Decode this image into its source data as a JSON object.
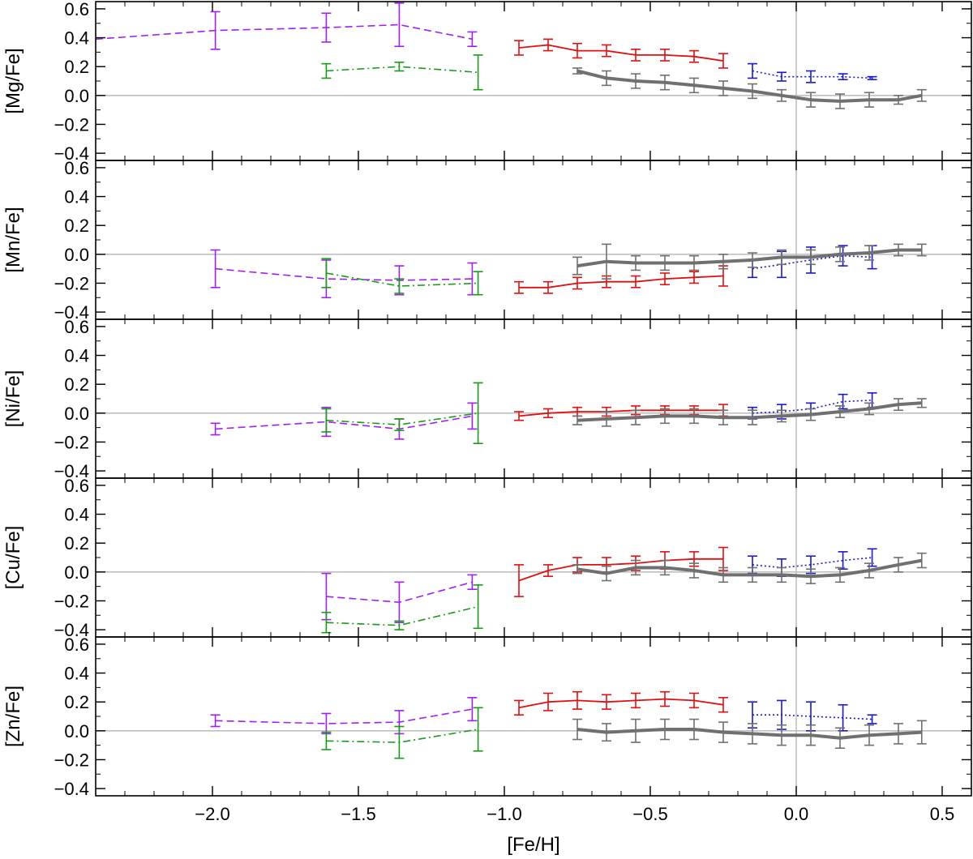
{
  "chart_data": {
    "type": "line",
    "xlabel": "[Fe/H]",
    "xlim": [
      -2.4,
      0.6
    ],
    "x_ticks": [
      -2.0,
      -1.5,
      -1.0,
      -0.5,
      0.0,
      0.5
    ],
    "x_tick_labels": [
      "−2.0",
      "−1.5",
      "−1.0",
      "−0.5",
      "0.0",
      "0.5"
    ],
    "ylim": [
      -0.45,
      0.65
    ],
    "y_ticks": [
      -0.4,
      -0.2,
      0.0,
      0.2,
      0.4,
      0.6
    ],
    "y_tick_labels": [
      "−0.4",
      "−0.2",
      "0.0",
      "0.2",
      "0.4",
      "0.6"
    ],
    "reference_lines": {
      "y": 0.0,
      "x": 0.0,
      "color": "#c0c0c0"
    },
    "series_styles": {
      "purple": {
        "color": "#a020f0",
        "dash": "dashed",
        "width": 1.6
      },
      "green": {
        "color": "#1a9a1a",
        "dash": "dashdot",
        "width": 1.6
      },
      "red": {
        "color": "#e01010",
        "dash": "solid",
        "width": 1.8
      },
      "blue": {
        "color": "#1a1acc",
        "dash": "dotted",
        "width": 1.6
      },
      "gray": {
        "color": "#707070",
        "dash": "solid",
        "width": 4
      }
    },
    "panels": [
      {
        "ylabel": "[Mg/Fe]",
        "series": [
          {
            "style": "purple",
            "x": [
              -2.4,
              -1.99,
              -1.61,
              -1.36,
              -1.11
            ],
            "y": [
              0.39,
              0.45,
              0.47,
              0.49,
              0.39
            ],
            "err": [
              0.0,
              0.13,
              0.1,
              0.15,
              0.05
            ]
          },
          {
            "style": "green",
            "x": [
              -1.61,
              -1.36,
              -1.09
            ],
            "y": [
              0.17,
              0.2,
              0.16
            ],
            "err": [
              0.05,
              0.03,
              0.12
            ]
          },
          {
            "style": "red",
            "x": [
              -0.95,
              -0.85,
              -0.75,
              -0.65,
              -0.55,
              -0.45,
              -0.35,
              -0.25
            ],
            "y": [
              0.33,
              0.35,
              0.31,
              0.31,
              0.28,
              0.28,
              0.27,
              0.24
            ],
            "err": [
              0.05,
              0.04,
              0.05,
              0.04,
              0.04,
              0.04,
              0.04,
              0.05
            ]
          },
          {
            "style": "blue",
            "x": [
              -0.15,
              -0.05,
              0.05,
              0.16,
              0.26
            ],
            "y": [
              0.17,
              0.13,
              0.13,
              0.13,
              0.12
            ],
            "err": [
              0.05,
              0.03,
              0.04,
              0.02,
              0.01
            ]
          },
          {
            "style": "gray",
            "x": [
              -0.75,
              -0.65,
              -0.55,
              -0.45,
              -0.35,
              -0.25,
              -0.15,
              -0.05,
              0.05,
              0.15,
              0.25,
              0.35,
              0.43
            ],
            "y": [
              0.17,
              0.12,
              0.1,
              0.09,
              0.07,
              0.05,
              0.03,
              0.0,
              -0.03,
              -0.04,
              -0.03,
              -0.03,
              0.0
            ],
            "err": [
              0.02,
              0.05,
              0.05,
              0.05,
              0.05,
              0.05,
              0.05,
              0.04,
              0.05,
              0.05,
              0.05,
              0.03,
              0.04
            ]
          }
        ]
      },
      {
        "ylabel": "[Mn/Fe]",
        "series": [
          {
            "style": "purple",
            "x": [
              -1.99,
              -1.61,
              -1.36,
              -1.11
            ],
            "y": [
              -0.1,
              -0.17,
              -0.18,
              -0.17
            ],
            "err": [
              0.13,
              0.13,
              0.1,
              0.11
            ]
          },
          {
            "style": "green",
            "x": [
              -1.61,
              -1.36,
              -1.09
            ],
            "y": [
              -0.13,
              -0.22,
              -0.2
            ],
            "err": [
              0.1,
              0.05,
              0.08
            ]
          },
          {
            "style": "red",
            "x": [
              -0.95,
              -0.85,
              -0.75,
              -0.65,
              -0.55,
              -0.45,
              -0.35,
              -0.25
            ],
            "y": [
              -0.23,
              -0.23,
              -0.2,
              -0.19,
              -0.19,
              -0.17,
              -0.16,
              -0.15
            ],
            "err": [
              0.04,
              0.04,
              0.04,
              0.04,
              0.04,
              0.04,
              0.04,
              0.07
            ]
          },
          {
            "style": "blue",
            "x": [
              -0.15,
              -0.05,
              0.05,
              0.16,
              0.26
            ],
            "y": [
              -0.1,
              -0.07,
              -0.04,
              -0.01,
              -0.02
            ],
            "err": [
              0.06,
              0.09,
              0.09,
              0.07,
              0.08
            ]
          },
          {
            "style": "gray",
            "x": [
              -0.75,
              -0.65,
              -0.55,
              -0.45,
              -0.35,
              -0.25,
              -0.15,
              -0.05,
              0.05,
              0.15,
              0.25,
              0.35,
              0.43
            ],
            "y": [
              -0.08,
              -0.05,
              -0.06,
              -0.06,
              -0.06,
              -0.05,
              -0.04,
              -0.02,
              -0.02,
              0.0,
              0.01,
              0.03,
              0.03
            ],
            "err": [
              0.06,
              0.12,
              0.05,
              0.05,
              0.05,
              0.05,
              0.05,
              0.05,
              0.05,
              0.05,
              0.05,
              0.04,
              0.04
            ]
          }
        ]
      },
      {
        "ylabel": "[Ni/Fe]",
        "series": [
          {
            "style": "purple",
            "x": [
              -1.99,
              -1.61,
              -1.36,
              -1.11
            ],
            "y": [
              -0.11,
              -0.06,
              -0.11,
              -0.02
            ],
            "err": [
              0.04,
              0.1,
              0.07,
              0.09
            ]
          },
          {
            "style": "green",
            "x": [
              -1.61,
              -1.36,
              -1.09
            ],
            "y": [
              -0.05,
              -0.08,
              0.0
            ],
            "err": [
              0.08,
              0.04,
              0.21
            ]
          },
          {
            "style": "red",
            "x": [
              -0.95,
              -0.85,
              -0.75,
              -0.65,
              -0.55,
              -0.45,
              -0.35,
              -0.25
            ],
            "y": [
              -0.02,
              0.0,
              0.01,
              0.01,
              0.02,
              0.02,
              0.02,
              0.02
            ],
            "err": [
              0.03,
              0.03,
              0.03,
              0.03,
              0.03,
              0.03,
              0.03,
              0.04
            ]
          },
          {
            "style": "blue",
            "x": [
              -0.15,
              -0.05,
              0.05,
              0.16,
              0.26
            ],
            "y": [
              0.0,
              0.01,
              0.03,
              0.08,
              0.09
            ],
            "err": [
              0.04,
              0.05,
              0.04,
              0.05,
              0.05
            ]
          },
          {
            "style": "gray",
            "x": [
              -0.75,
              -0.65,
              -0.55,
              -0.45,
              -0.35,
              -0.25,
              -0.15,
              -0.05,
              0.05,
              0.15,
              0.25,
              0.35,
              0.43
            ],
            "y": [
              -0.05,
              -0.04,
              -0.03,
              -0.02,
              -0.02,
              -0.03,
              -0.03,
              -0.02,
              -0.01,
              0.01,
              0.03,
              0.06,
              0.07
            ],
            "err": [
              0.03,
              0.05,
              0.05,
              0.05,
              0.05,
              0.05,
              0.05,
              0.04,
              0.04,
              0.04,
              0.04,
              0.04,
              0.03
            ]
          }
        ]
      },
      {
        "ylabel": "[Cu/Fe]",
        "series": [
          {
            "style": "purple",
            "x": [
              -1.61,
              -1.36,
              -1.11
            ],
            "y": [
              -0.17,
              -0.21,
              -0.07
            ],
            "err": [
              0.16,
              0.14,
              0.05
            ]
          },
          {
            "style": "green",
            "x": [
              -1.61,
              -1.36,
              -1.09
            ],
            "y": [
              -0.35,
              -0.37,
              -0.24
            ],
            "err": [
              0.07,
              0.03,
              0.15
            ]
          },
          {
            "style": "red",
            "x": [
              -0.95,
              -0.85,
              -0.75,
              -0.65,
              -0.55,
              -0.45,
              -0.35,
              -0.25
            ],
            "y": [
              -0.06,
              0.01,
              0.05,
              0.05,
              0.06,
              0.08,
              0.09,
              0.09
            ],
            "err": [
              0.11,
              0.04,
              0.05,
              0.05,
              0.05,
              0.06,
              0.05,
              0.08
            ]
          },
          {
            "style": "blue",
            "x": [
              -0.15,
              -0.05,
              0.05,
              0.16,
              0.26
            ],
            "y": [
              0.05,
              0.03,
              0.05,
              0.08,
              0.1
            ],
            "err": [
              0.06,
              0.06,
              0.06,
              0.06,
              0.06
            ]
          },
          {
            "style": "gray",
            "x": [
              -0.75,
              -0.65,
              -0.55,
              -0.45,
              -0.35,
              -0.25,
              -0.15,
              -0.05,
              0.05,
              0.15,
              0.25,
              0.35,
              0.43
            ],
            "y": [
              0.02,
              -0.01,
              0.03,
              0.03,
              0.01,
              -0.02,
              -0.02,
              -0.02,
              -0.03,
              -0.02,
              0.01,
              0.05,
              0.08
            ],
            "err": [
              0.03,
              0.05,
              0.05,
              0.05,
              0.05,
              0.05,
              0.05,
              0.05,
              0.05,
              0.05,
              0.05,
              0.05,
              0.05
            ]
          }
        ]
      },
      {
        "ylabel": "[Zn/Fe]",
        "series": [
          {
            "style": "purple",
            "x": [
              -1.99,
              -1.61,
              -1.36,
              -1.11
            ],
            "y": [
              0.07,
              0.05,
              0.06,
              0.15
            ],
            "err": [
              0.04,
              0.07,
              0.08,
              0.08
            ]
          },
          {
            "style": "green",
            "x": [
              -1.61,
              -1.36,
              -1.09
            ],
            "y": [
              -0.07,
              -0.08,
              0.01
            ],
            "err": [
              0.06,
              0.11,
              0.15
            ]
          },
          {
            "style": "red",
            "x": [
              -0.95,
              -0.85,
              -0.75,
              -0.65,
              -0.55,
              -0.45,
              -0.35,
              -0.25
            ],
            "y": [
              0.16,
              0.2,
              0.21,
              0.2,
              0.21,
              0.22,
              0.21,
              0.18
            ],
            "err": [
              0.05,
              0.06,
              0.06,
              0.05,
              0.05,
              0.05,
              0.05,
              0.05
            ]
          },
          {
            "style": "blue",
            "x": [
              -0.15,
              -0.05,
              0.05,
              0.16,
              0.26
            ],
            "y": [
              0.11,
              0.11,
              0.1,
              0.09,
              0.08
            ],
            "err": [
              0.09,
              0.1,
              0.1,
              0.09,
              0.03
            ]
          },
          {
            "style": "gray",
            "x": [
              -0.75,
              -0.65,
              -0.55,
              -0.45,
              -0.35,
              -0.25,
              -0.15,
              -0.05,
              0.05,
              0.15,
              0.25,
              0.35,
              0.43
            ],
            "y": [
              0.01,
              -0.01,
              0.0,
              0.01,
              0.01,
              -0.01,
              -0.02,
              -0.03,
              -0.03,
              -0.05,
              -0.03,
              -0.02,
              -0.01
            ],
            "err": [
              0.07,
              0.06,
              0.08,
              0.07,
              0.07,
              0.07,
              0.07,
              0.07,
              0.07,
              0.07,
              0.07,
              0.07,
              0.08
            ]
          }
        ]
      }
    ]
  }
}
